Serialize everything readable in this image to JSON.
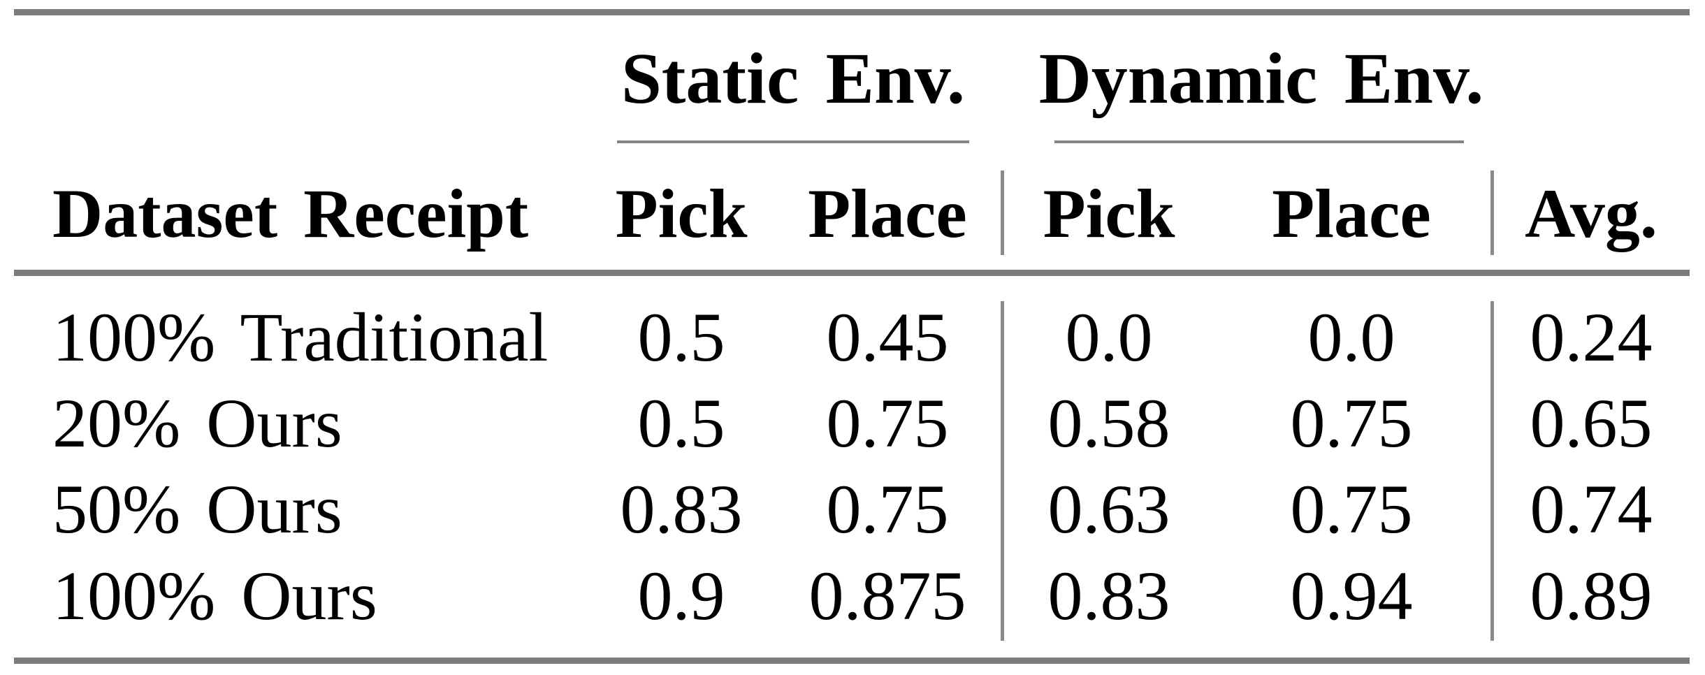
{
  "colors": {
    "background": "#ffffff",
    "text": "#000000",
    "thick_rule_gray": "#7b7b7b",
    "thin_rule_gray": "#848484"
  },
  "table": {
    "group_headers": {
      "static": "Static Env.",
      "dynamic": "Dynamic Env."
    },
    "column_headers": {
      "dataset": "Dataset Receipt",
      "static_pick": "Pick",
      "static_place": "Place",
      "dynamic_pick": "Pick",
      "dynamic_place": "Place",
      "avg": "Avg."
    },
    "rows": [
      {
        "label": "100% Traditional",
        "static_pick": "0.5",
        "static_place": "0.45",
        "dynamic_pick": "0.0",
        "dynamic_place": "0.0",
        "avg": "0.24"
      },
      {
        "label": "20% Ours",
        "static_pick": "0.5",
        "static_place": "0.75",
        "dynamic_pick": "0.58",
        "dynamic_place": "0.75",
        "avg": "0.65"
      },
      {
        "label": "50% Ours",
        "static_pick": "0.83",
        "static_place": "0.75",
        "dynamic_pick": "0.63",
        "dynamic_place": "0.75",
        "avg": "0.74"
      },
      {
        "label": "100% Ours",
        "static_pick": "0.9",
        "static_place": "0.875",
        "dynamic_pick": "0.83",
        "dynamic_place": "0.94",
        "avg": "0.89"
      }
    ]
  }
}
